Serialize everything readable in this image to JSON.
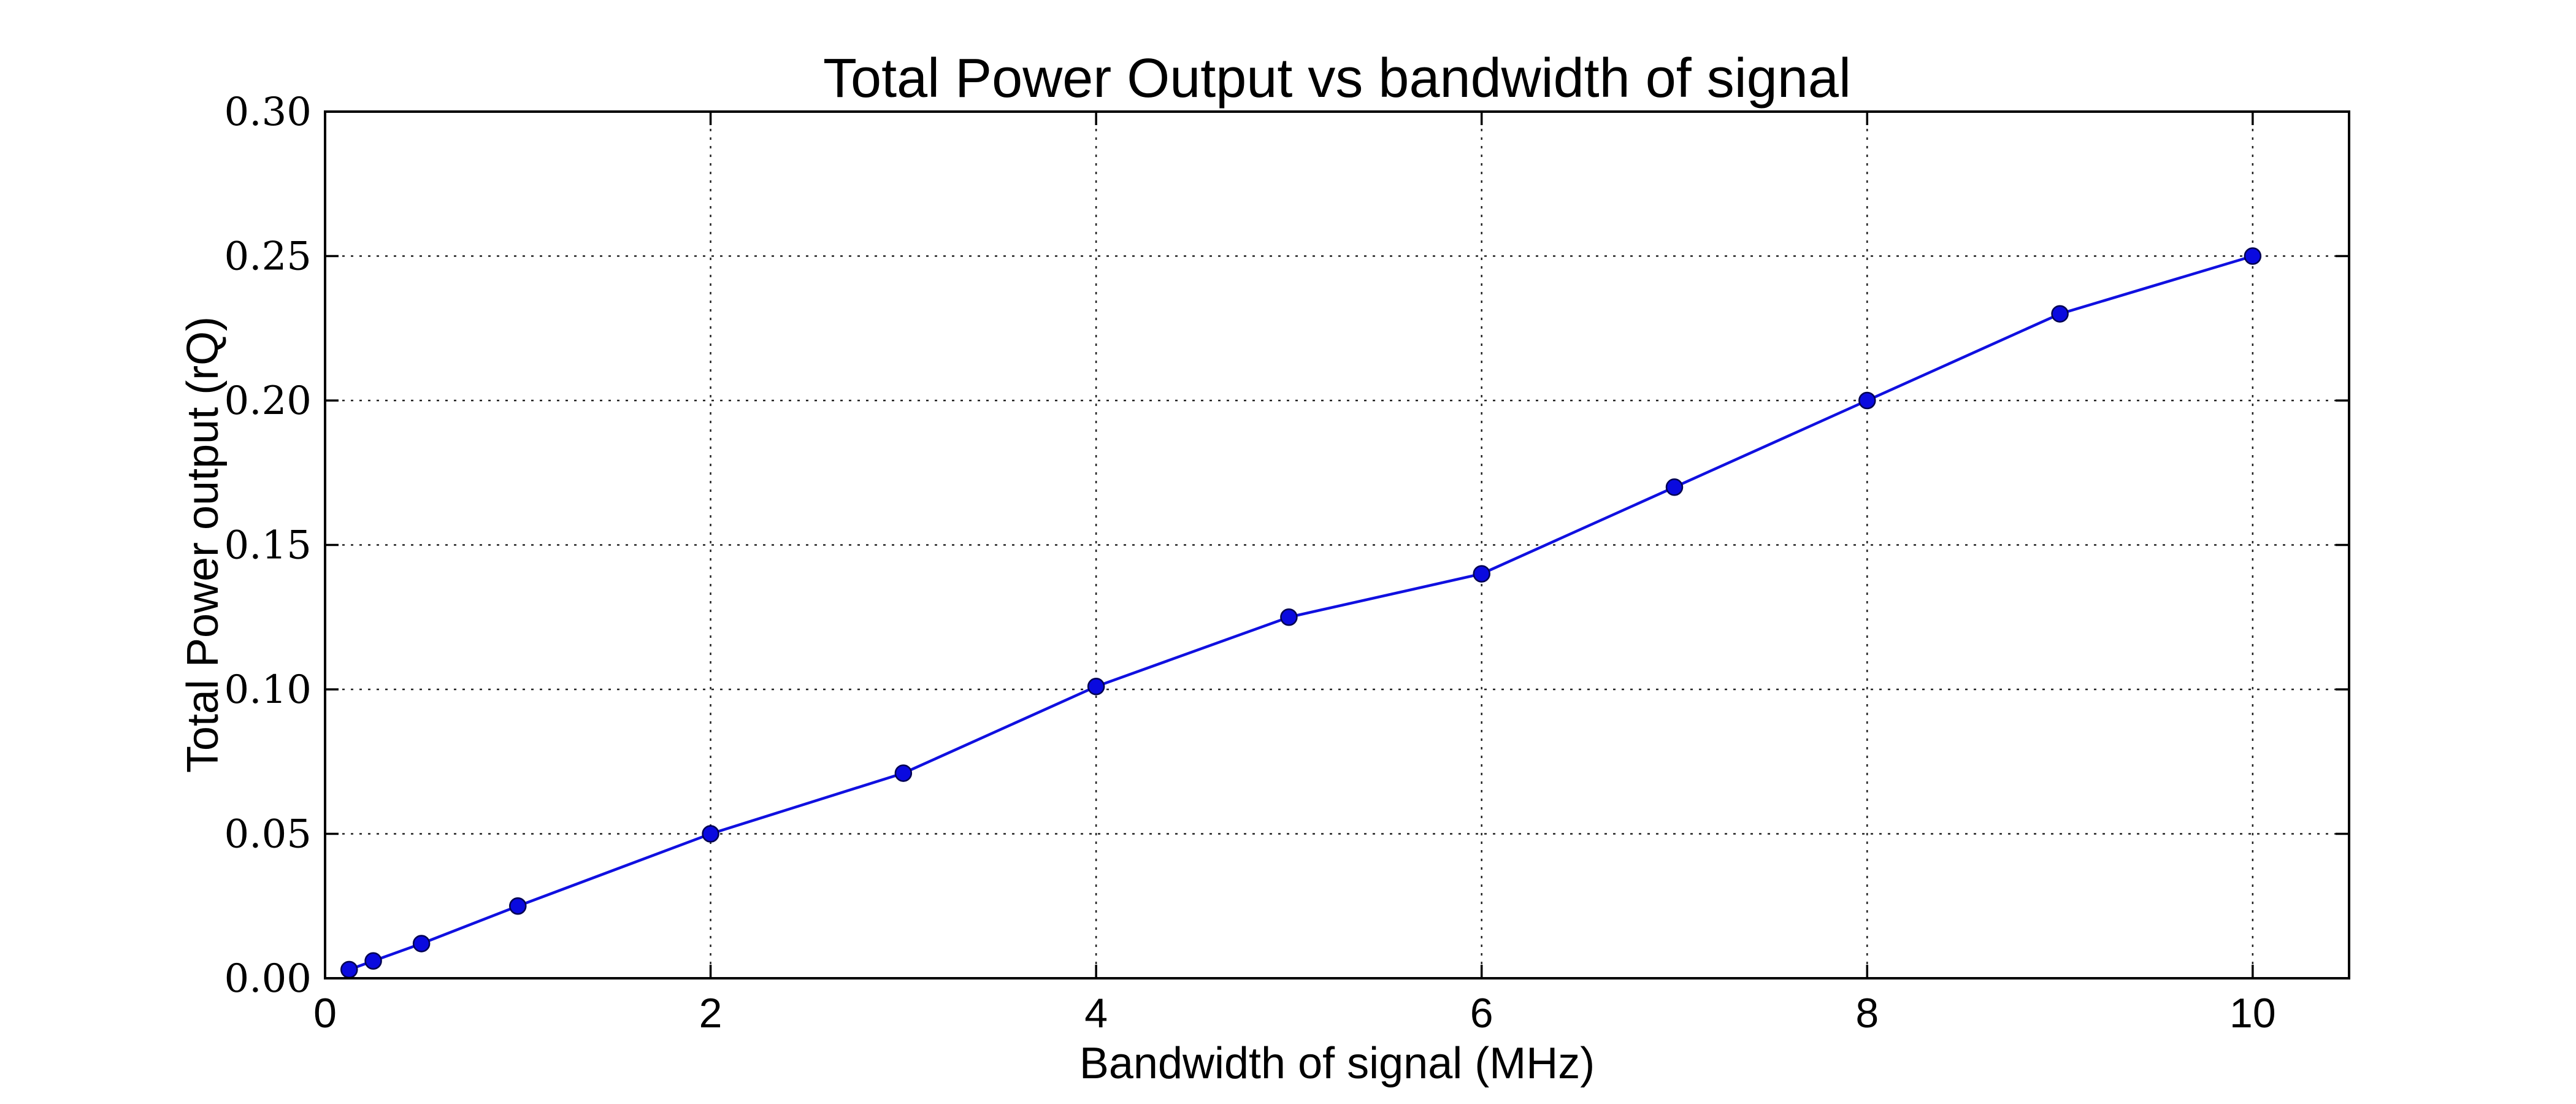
{
  "chart_data": {
    "type": "line",
    "title": "Total Power Output vs bandwidth of signal",
    "xlabel": "Bandwidth of signal (MHz)",
    "ylabel": "Total Power output (rQ)",
    "xlim": [
      0,
      10.5
    ],
    "ylim": [
      0,
      0.3
    ],
    "xticks": [
      0,
      2,
      4,
      6,
      8,
      10
    ],
    "xtick_labels": [
      "0",
      "2",
      "4",
      "6",
      "8",
      "10"
    ],
    "yticks": [
      0,
      0.05,
      0.1,
      0.15,
      0.2,
      0.25,
      0.3
    ],
    "ytick_labels": [
      "0.00",
      "0.05",
      "0.10",
      "0.15",
      "0.20",
      "0.25",
      "0.30"
    ],
    "grid": true,
    "legend": "none",
    "series": [
      {
        "color": "#0000ff",
        "marker": "circle",
        "x": [
          0.125,
          0.25,
          0.5,
          1,
          2,
          3,
          4,
          5,
          6,
          7,
          8,
          9,
          10
        ],
        "y": [
          0.003,
          0.006,
          0.012,
          0.025,
          0.05,
          0.071,
          0.101,
          0.125,
          0.14,
          0.17,
          0.2,
          0.23,
          0.25
        ]
      }
    ]
  }
}
